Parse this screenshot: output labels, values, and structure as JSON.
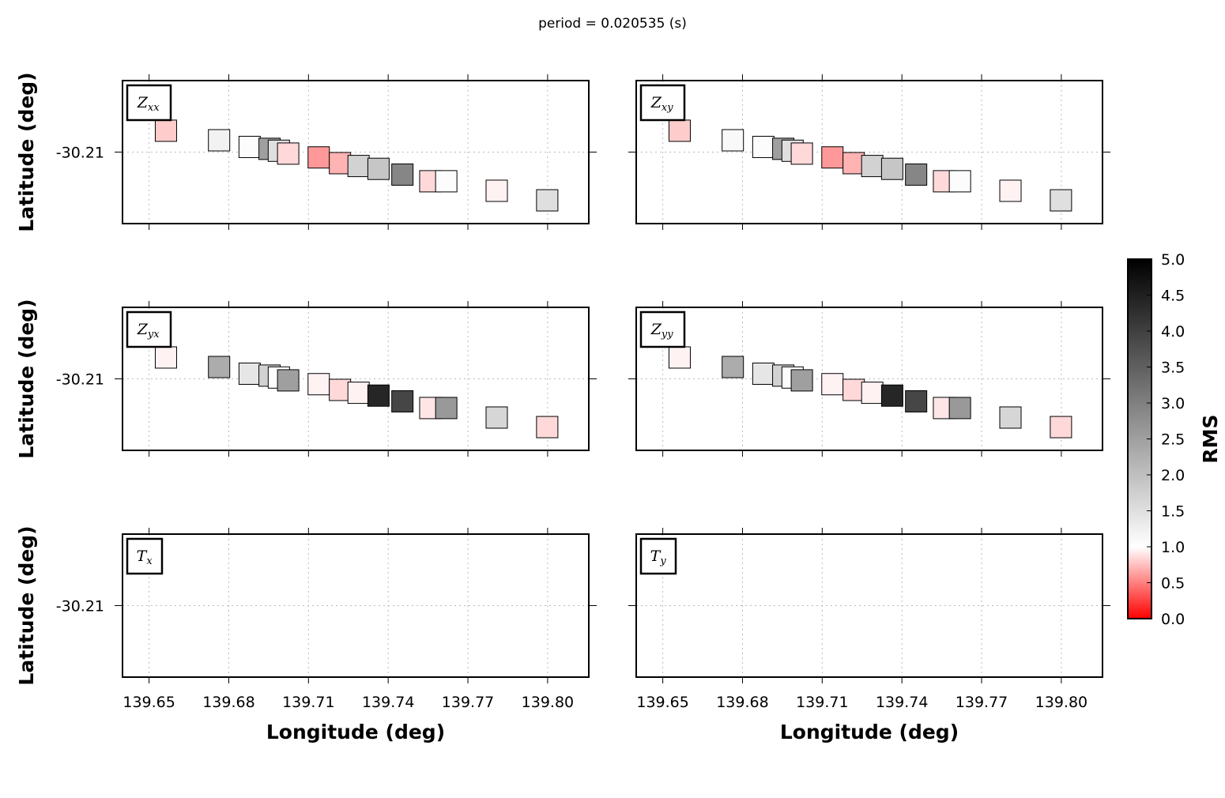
{
  "chart_data": {
    "type": "heatmap",
    "title": "period = 0.020535 (s)",
    "xlabel": "Longitude (deg)",
    "ylabel": "Latitude (deg)",
    "xlim": [
      139.64,
      139.8155
    ],
    "ylim": [
      -30.2175,
      -30.2025
    ],
    "xticks": [
      "139.65",
      "139.68",
      "139.71",
      "139.74",
      "139.77",
      "139.80"
    ],
    "xtick_values": [
      139.65,
      139.68,
      139.71,
      139.74,
      139.77,
      139.8
    ],
    "yticks": [
      "-30.21"
    ],
    "ytick_values": [
      -30.21
    ],
    "grid": true,
    "colorbar": {
      "label": "RMS",
      "min": 0.0,
      "max": 5.0,
      "ticks": [
        "0.0",
        "0.5",
        "1.0",
        "1.5",
        "2.0",
        "2.5",
        "3.0",
        "3.5",
        "4.0",
        "4.5",
        "5.0"
      ],
      "colors": [
        "#ff0000",
        "#ffffff",
        "#000000"
      ],
      "color_stops": [
        0.0,
        1.0,
        5.0
      ]
    },
    "stations": [
      {
        "lon": 139.6565,
        "lat": -30.2078
      },
      {
        "lon": 139.6765,
        "lat": -30.2088
      },
      {
        "lon": 139.688,
        "lat": -30.2095
      },
      {
        "lon": 139.6955,
        "lat": -30.2097
      },
      {
        "lon": 139.699,
        "lat": -30.2099
      },
      {
        "lon": 139.7025,
        "lat": -30.2102
      },
      {
        "lon": 139.714,
        "lat": -30.2106
      },
      {
        "lon": 139.722,
        "lat": -30.2112
      },
      {
        "lon": 139.729,
        "lat": -30.2115
      },
      {
        "lon": 139.7365,
        "lat": -30.2118
      },
      {
        "lon": 139.7455,
        "lat": -30.2124
      },
      {
        "lon": 139.756,
        "lat": -30.2131
      },
      {
        "lon": 139.762,
        "lat": -30.2131
      },
      {
        "lon": 139.781,
        "lat": -30.2141
      },
      {
        "lon": 139.8,
        "lat": -30.2151
      }
    ],
    "panels": [
      {
        "name": "Z_xx",
        "label_main": "Z",
        "label_sub": "xx",
        "rms": [
          0.8,
          1.2,
          1.05,
          2.5,
          1.5,
          0.85,
          0.6,
          0.7,
          1.7,
          1.9,
          2.9,
          0.85,
          1.05,
          0.95,
          1.5
        ]
      },
      {
        "name": "Z_xy",
        "label_main": "Z",
        "label_sub": "xy",
        "rms": [
          0.8,
          1.1,
          1.05,
          2.5,
          1.5,
          0.85,
          0.6,
          0.7,
          1.7,
          1.9,
          2.9,
          0.85,
          1.05,
          0.95,
          1.5
        ]
      },
      {
        "name": "Z_yx",
        "label_main": "Z",
        "label_sub": "yx",
        "rms": [
          0.95,
          2.3,
          1.4,
          1.7,
          1.05,
          2.5,
          0.95,
          0.85,
          0.95,
          4.4,
          3.9,
          0.9,
          2.6,
          1.65,
          0.85
        ]
      },
      {
        "name": "Z_yy",
        "label_main": "Z",
        "label_sub": "yy",
        "rms": [
          0.95,
          2.3,
          1.4,
          1.7,
          1.05,
          2.5,
          0.95,
          0.85,
          0.95,
          4.4,
          3.9,
          0.9,
          2.6,
          1.65,
          0.85
        ]
      },
      {
        "name": "T_x",
        "label_main": "T",
        "label_sub": "x",
        "rms": []
      },
      {
        "name": "T_y",
        "label_main": "T",
        "label_sub": "y",
        "rms": []
      }
    ]
  }
}
